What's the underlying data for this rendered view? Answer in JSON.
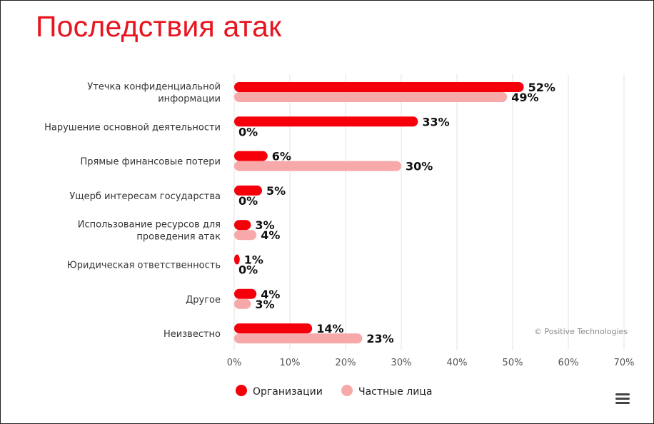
{
  "title": "Последствия атак",
  "copyright": "© Positive Technologies",
  "colors": {
    "org": "#f5000a",
    "private": "#f7a8a8",
    "title": "#e8141e",
    "grid": "#e3e3e3"
  },
  "menu_icon": "hamburger-menu-icon",
  "chart_data": {
    "type": "bar",
    "orientation": "horizontal",
    "categories": [
      [
        "Утечка конфиденциальной",
        "информации"
      ],
      [
        "Нарушение основной деятельности"
      ],
      [
        "Прямые финансовые потери"
      ],
      [
        "Ущерб интересам государства"
      ],
      [
        "Использование ресурсов для",
        "проведения атак"
      ],
      [
        "Юридическая ответственность"
      ],
      [
        "Другое"
      ],
      [
        "Неизвестно"
      ]
    ],
    "series": [
      {
        "name": "Организации",
        "values": [
          52,
          33,
          6,
          5,
          3,
          1,
          4,
          14
        ],
        "labels": [
          "52%",
          "33%",
          "6%",
          "5%",
          "3%",
          "1%",
          "4%",
          "14%"
        ]
      },
      {
        "name": "Частные лица",
        "values": [
          49,
          0,
          30,
          0,
          4,
          0,
          3,
          23
        ],
        "labels": [
          "49%",
          "0%",
          "30%",
          "0%",
          "4%",
          "0%",
          "3%",
          "23%"
        ]
      }
    ],
    "xlim": [
      0,
      70
    ],
    "xticks": [
      "0%",
      "10%",
      "20%",
      "30%",
      "40%",
      "50%",
      "60%",
      "70%"
    ],
    "grid": true,
    "legend": "bottom-center"
  }
}
